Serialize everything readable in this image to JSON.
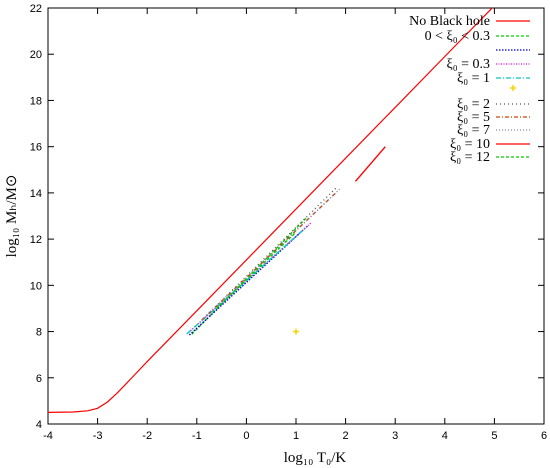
{
  "chart_data": {
    "type": "line",
    "xlabel": "log₁₀ T₀/K",
    "ylabel": "log₁₀ Mₕ/M⊙",
    "xlim": [
      -4,
      6
    ],
    "ylim": [
      4,
      22
    ],
    "x_ticks": [
      "-4",
      "-3",
      "-2",
      "-1",
      "0",
      "1",
      "2",
      "3",
      "4",
      "5",
      "6"
    ],
    "y_ticks": [
      "4",
      "6",
      "8",
      "10",
      "12",
      "14",
      "16",
      "18",
      "20",
      "22"
    ],
    "legend_position": "top-right",
    "grid": false,
    "series": [
      {
        "name": "No Black hole",
        "color": "#ff0000",
        "dash": "",
        "x": [
          -4.0,
          -3.5,
          -3.2,
          -3.0,
          -2.8,
          -2.6,
          -2.4,
          -2.2,
          -2.0,
          -1.5,
          -1.0,
          0.0,
          1.0,
          2.0,
          3.0,
          4.0,
          5.0,
          5.95
        ],
        "y": [
          4.5,
          4.52,
          4.57,
          4.68,
          4.95,
          5.35,
          5.8,
          6.25,
          6.7,
          7.8,
          8.9,
          11.1,
          13.3,
          15.5,
          17.7,
          19.9,
          22.1,
          24.2
        ]
      },
      {
        "name": "0 < ξ₀ < 0.3",
        "color": "#00cc00",
        "dash": "3,2",
        "x": [
          -1.1,
          1.2
        ],
        "y": [
          7.88,
          12.9
        ]
      },
      {
        "name": "ξ₀ = 0.3",
        "color": "#0000cc",
        "dash": "1.5,1.5",
        "x": [
          -1.15,
          1.25
        ],
        "y": [
          7.85,
          12.6
        ]
      },
      {
        "name": "ξ₀ = 1",
        "color": "#ee00ee",
        "dash": "1,1.5",
        "x": [
          -1.2,
          1.3
        ],
        "y": [
          7.9,
          12.7
        ]
      },
      {
        "name": "ξ₀ = 2",
        "color": "#00c8c8",
        "dash": "5,2,1,2",
        "x": [
          -1.2,
          1.2
        ],
        "y": [
          7.9,
          12.5
        ]
      },
      {
        "name": "ξ₀ = 5",
        "color": "#555555",
        "dash": "1,3",
        "x": [
          -0.8,
          1.8
        ],
        "y": [
          8.7,
          14.2
        ]
      },
      {
        "name": "ξ₀ = 7",
        "color": "#cc4400",
        "dash": "4,2,1,2",
        "x": [
          -0.9,
          1.8
        ],
        "y": [
          8.5,
          14.0
        ]
      },
      {
        "name": "ξ₀ = 10",
        "color": "#8888aa",
        "dash": "1,2",
        "x": [
          -0.9,
          1.9
        ],
        "y": [
          8.5,
          14.2
        ]
      },
      {
        "name": "ξ₀ = 12",
        "color": "#ff0000",
        "dash": "",
        "x": [
          2.2,
          2.8
        ],
        "y": [
          14.5,
          16.0
        ]
      },
      {
        "name": "",
        "color": "#00cc00",
        "dash": "3,2",
        "x": [
          -0.6,
          1.0
        ],
        "y": [
          9.0,
          12.3
        ]
      }
    ],
    "points": [
      {
        "series": "ξ₀ = 2",
        "x": 1.0,
        "y": 8.0,
        "color": "#ffd000"
      }
    ],
    "legend": [
      {
        "label": "No Black hole",
        "color": "#ff0000",
        "dash": "",
        "kind": "line"
      },
      {
        "label": "0 < ξ₀ < 0.3",
        "color": "#00cc00",
        "dash": "3,2",
        "kind": "line"
      },
      {
        "label": "",
        "color": "#0000cc",
        "dash": "1.5,1.5",
        "kind": "line"
      },
      {
        "label": "ξ₀ = 0.3",
        "color": "#ee00ee",
        "dash": "1,1.5",
        "kind": "line"
      },
      {
        "label": "ξ₀ = 1",
        "color": "#00c8c8",
        "dash": "5,2,1,2",
        "kind": "line"
      },
      {
        "label": "",
        "color": "#ffd000",
        "dash": "",
        "kind": "point"
      },
      {
        "label": "ξ₀ = 2",
        "color": "#555555",
        "dash": "1,3",
        "kind": "line"
      },
      {
        "label": "ξ₀ = 5",
        "color": "#cc4400",
        "dash": "4,2,1,2",
        "kind": "line"
      },
      {
        "label": "ξ₀ = 7",
        "color": "#8888aa",
        "dash": "1,2",
        "kind": "line"
      },
      {
        "label": "ξ₀ = 10",
        "color": "#ff0000",
        "dash": "",
        "kind": "line"
      },
      {
        "label": "ξ₀ = 12",
        "color": "#00cc00",
        "dash": "3,2",
        "kind": "line"
      }
    ]
  }
}
